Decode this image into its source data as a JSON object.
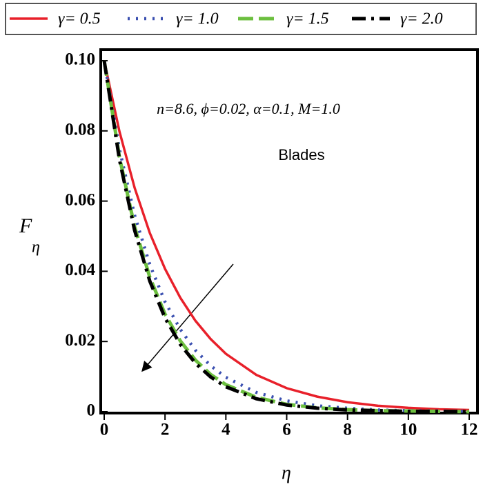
{
  "chart_data": {
    "type": "line",
    "annotations": [
      "n=8.6, ϕ=0.02, α=0.1, M=1.0",
      "Blades"
    ],
    "xlabel": "η",
    "ylabel": "F",
    "ylabel_sub": "η",
    "x": [
      0,
      0.5,
      1,
      1.5,
      2,
      2.5,
      3,
      3.5,
      4,
      5,
      6,
      7,
      8,
      9,
      10,
      11,
      12
    ],
    "series": [
      {
        "name": "γ= 0.5",
        "color": "#e8202a",
        "dash": "solid",
        "values": [
          0.1,
          0.0799,
          0.0638,
          0.0509,
          0.0407,
          0.0325,
          0.0259,
          0.0207,
          0.0165,
          0.0105,
          0.0067,
          0.0043,
          0.0027,
          0.0017,
          0.0011,
          0.0007,
          0.0005
        ]
      },
      {
        "name": "γ= 1.0",
        "color": "#3a4fb0",
        "dash": "dot",
        "values": [
          0.1,
          0.0748,
          0.056,
          0.0419,
          0.0313,
          0.0235,
          0.0175,
          0.0131,
          0.0098,
          0.0055,
          0.0031,
          0.0017,
          0.001,
          0.0005,
          0.0003,
          0.0002,
          0.0001
        ]
      },
      {
        "name": "γ= 1.5",
        "color": "#6cbf3f",
        "dash": "dash",
        "values": [
          0.1,
          0.0726,
          0.0527,
          0.0383,
          0.0278,
          0.0202,
          0.0147,
          0.0106,
          0.0077,
          0.0041,
          0.0021,
          0.0011,
          0.0006,
          0.0003,
          0.0002,
          0.0001,
          0
        ]
      },
      {
        "name": "γ= 2.0",
        "color": "#000000",
        "dash": "dashdot",
        "values": [
          0.1,
          0.0719,
          0.0517,
          0.0372,
          0.0267,
          0.0192,
          0.0138,
          0.0099,
          0.0071,
          0.0037,
          0.0019,
          0.001,
          0.0005,
          0.0003,
          0.0001,
          0.0001,
          0
        ]
      }
    ],
    "xlim": [
      0,
      12
    ],
    "xticks": [
      0,
      2,
      4,
      6,
      8,
      10,
      12
    ],
    "ylim": [
      0,
      0.1
    ],
    "yticks": [
      0,
      0.02,
      0.04,
      0.06,
      0.08,
      {
        "value": 0.1,
        "label": "0.10"
      }
    ],
    "grid": false
  }
}
